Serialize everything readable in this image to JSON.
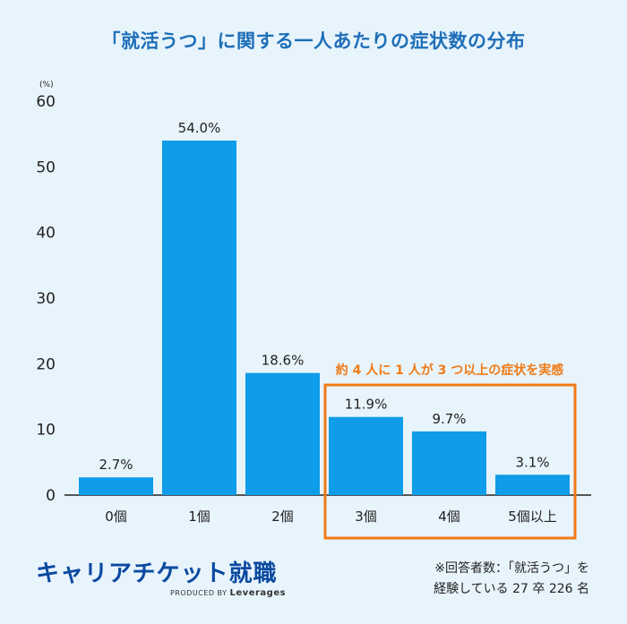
{
  "title": "「就活うつ」に関する一人あたりの症状数の分布",
  "unit_label": "(%)",
  "chart_data": {
    "type": "bar",
    "categories": [
      "0個",
      "1個",
      "2個",
      "3個",
      "4個",
      "5個以上"
    ],
    "values": [
      2.7,
      54.0,
      18.6,
      11.9,
      9.7,
      3.1
    ],
    "value_labels": [
      "2.7%",
      "54.0%",
      "18.6%",
      "11.9%",
      "9.7%",
      "3.1%"
    ],
    "ylim": [
      0,
      60
    ],
    "yticks": [
      0,
      10,
      20,
      30,
      40,
      50,
      60
    ],
    "grid": false,
    "bar_color": "#0f9ce8"
  },
  "callout": {
    "text": "約 4 人に 1 人が 3 つ以上の症状を実感",
    "color": "#f07a16",
    "covers_categories": [
      "3個",
      "4個",
      "5個以上"
    ]
  },
  "brand": {
    "logo_text": "キャリアチケット就職",
    "produced_by": "PRODUCED BY",
    "company": "Leverages"
  },
  "note": {
    "line1": "※回答者数：「就活うつ」を",
    "line2": "経験している 27 卒 226 名"
  }
}
